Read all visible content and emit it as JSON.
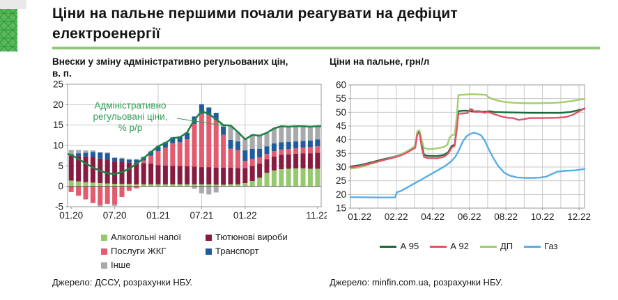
{
  "page": {
    "title_line1": "Ціни на пальне першими почали реагувати на дефіцит",
    "title_line2": "електроенергії"
  },
  "colors": {
    "title_rule": "#8cc878",
    "logo_bg": "#5db75d",
    "logo_line": "#2f9e3f",
    "grid": "#c9c9c9",
    "frame": "#999999",
    "zero_line": "#5f5f5f",
    "axis_text": "#1a1a1a",
    "annotation_green": "#2f9e57"
  },
  "left_panel": {
    "title_line1": "Внески у зміну адміністративно регульованих цін,",
    "title_line2": "в. п.",
    "source": "Джерело: ДССУ, розрахунки НБУ."
  },
  "right_panel": {
    "title": "Ціни на пальне, грн/л",
    "source": "Джерело: minfin.com.ua, розрахунки НБУ."
  },
  "chart_data": [
    {
      "type": "bar",
      "title": "Внески у зміну адміністративно регульованих цін, в. п.",
      "ylim": [
        -5,
        25
      ],
      "yticks": [
        -5,
        0,
        5,
        10,
        15,
        20,
        25
      ],
      "months": [
        "01.20",
        "02.20",
        "03.20",
        "04.20",
        "05.20",
        "06.20",
        "07.20",
        "08.20",
        "09.20",
        "10.20",
        "11.20",
        "12.20",
        "01.21",
        "02.21",
        "03.21",
        "04.21",
        "05.21",
        "06.21",
        "07.21",
        "08.21",
        "09.21",
        "10.21",
        "11.21",
        "12.21",
        "01.22",
        "02.22",
        "03.22",
        "04.22",
        "05.22",
        "06.22",
        "07.22",
        "08.22",
        "09.22",
        "10.22",
        "11.22"
      ],
      "xticks": [
        {
          "label": "01.20",
          "i": 0
        },
        {
          "label": "07.20",
          "i": 6
        },
        {
          "label": "01.21",
          "i": 12
        },
        {
          "label": "07.21",
          "i": 18
        },
        {
          "label": "01.22",
          "i": 24
        },
        {
          "label": "11.22",
          "i": 34
        }
      ],
      "vgrid_indices": [
        12,
        18,
        24
      ],
      "series": [
        {
          "name": "Алкогольні напої",
          "color": "#96c86e",
          "values": [
            1.4,
            1.2,
            1.0,
            0.9,
            0.8,
            0.7,
            0.6,
            0.6,
            0.6,
            0.5,
            0.5,
            0.5,
            0.5,
            0.5,
            0.5,
            0.5,
            0.5,
            0.5,
            0.5,
            0.5,
            0.4,
            0.4,
            0.5,
            0.5,
            0.8,
            1.3,
            2.1,
            3.3,
            3.9,
            4.2,
            4.3,
            4.4,
            4.4,
            4.3,
            4.3
          ]
        },
        {
          "name": "Тютюнові вироби",
          "color": "#871c40",
          "values": [
            6.1,
            6.2,
            6.3,
            6.3,
            6.0,
            5.8,
            5.5,
            5.4,
            5.2,
            5.3,
            5.2,
            5.1,
            4.7,
            4.6,
            4.5,
            4.5,
            4.4,
            4.3,
            4.2,
            4.2,
            4.2,
            4.2,
            4.1,
            4.0,
            3.7,
            3.7,
            3.5,
            3.3,
            3.4,
            3.5,
            3.5,
            3.6,
            3.7,
            3.8,
            3.9
          ]
        },
        {
          "name": "Послуги ЖКГ",
          "color": "#e25b6e",
          "values": [
            -1.4,
            -2.3,
            -3.2,
            -4.1,
            -4.6,
            -4.3,
            -4.4,
            -2.6,
            -1.1,
            -0.5,
            0.6,
            1.9,
            3.4,
            4.4,
            5.6,
            5.8,
            6.6,
            10.5,
            13.0,
            12.8,
            11.7,
            8.0,
            4.6,
            4.4,
            1.7,
            1.7,
            1.5,
            1.3,
            1.3,
            1.3,
            1.3,
            1.3,
            1.4,
            1.5,
            1.6
          ]
        },
        {
          "name": "Транспорт",
          "color": "#1f5c9e",
          "values": [
            0.4,
            0.7,
            0.9,
            1.2,
            1.5,
            1.6,
            0.9,
            0.8,
            0.7,
            0.7,
            0.8,
            1.0,
            1.1,
            1.2,
            1.3,
            1.3,
            1.6,
            1.8,
            2.4,
            1.8,
            1.7,
            2.0,
            2.2,
            2.1,
            2.6,
            2.5,
            2.1,
            1.9,
            1.9,
            1.8,
            1.8,
            1.7,
            1.6,
            1.6,
            1.7
          ]
        },
        {
          "name": "Інше",
          "color": "#a7a9ac",
          "values": [
            1.0,
            0.8,
            0.6,
            0.4,
            -0.4,
            0.2,
            -0.4,
            0.2,
            0.2,
            0.2,
            0.2,
            0.2,
            0.2,
            0.2,
            0.2,
            0.2,
            0.1,
            -0.6,
            -1.7,
            -2.0,
            -1.5,
            0.6,
            3.4,
            2.3,
            2.7,
            3.4,
            3.2,
            3.3,
            3.7,
            3.9,
            3.7,
            3.7,
            3.6,
            3.4,
            3.2
          ]
        }
      ],
      "line": {
        "name": "Адміністративно регульовані ціни, % р/р",
        "annotation_lines": [
          "Адміністративно",
          "регульовані ціни,",
          "% р/р"
        ],
        "color": "#1e8246",
        "values": [
          7.7,
          6.7,
          5.6,
          4.6,
          3.8,
          3.2,
          3.0,
          3.5,
          4.3,
          5.5,
          6.9,
          8.4,
          9.8,
          10.6,
          11.8,
          12.0,
          13.2,
          16.3,
          18.4,
          17.7,
          16.4,
          15.0,
          14.9,
          13.3,
          11.5,
          12.6,
          12.4,
          13.1,
          14.2,
          14.7,
          14.6,
          14.7,
          14.7,
          14.6,
          14.7
        ]
      }
    },
    {
      "type": "line",
      "title": "Ціни на пальне, грн/л",
      "ylim": [
        15,
        60
      ],
      "yticks": [
        15,
        20,
        25,
        30,
        35,
        40,
        45,
        50,
        55,
        60
      ],
      "xlim": [
        -0.25,
        6.15
      ],
      "xticks": [
        {
          "label": "01.22",
          "t": 0
        },
        {
          "label": "02.22",
          "t": 1
        },
        {
          "label": "04.22",
          "t": 2
        },
        {
          "label": "06.22",
          "t": 3
        },
        {
          "label": "08.22",
          "t": 4
        },
        {
          "label": "10.22",
          "t": 5
        },
        {
          "label": "12.22",
          "t": 6
        }
      ],
      "series": [
        {
          "name": "А 95",
          "color": "#17693a",
          "points": [
            [
              -0.25,
              30.2
            ],
            [
              0,
              30.7
            ],
            [
              0.2,
              31.3
            ],
            [
              0.4,
              32.0
            ],
            [
              0.6,
              32.7
            ],
            [
              0.8,
              33.3
            ],
            [
              1.0,
              34.0
            ],
            [
              1.15,
              34.7
            ],
            [
              1.3,
              35.6
            ],
            [
              1.45,
              36.8
            ],
            [
              1.52,
              37.4
            ],
            [
              1.58,
              42.6
            ],
            [
              1.64,
              42.8
            ],
            [
              1.7,
              38.0
            ],
            [
              1.76,
              34.5
            ],
            [
              1.85,
              34.1
            ],
            [
              2.1,
              34.0
            ],
            [
              2.3,
              34.4
            ],
            [
              2.42,
              35.4
            ],
            [
              2.52,
              37.7
            ],
            [
              2.6,
              38.2
            ],
            [
              2.66,
              45.0
            ],
            [
              2.7,
              50.4
            ],
            [
              2.85,
              50.6
            ],
            [
              3.0,
              50.5
            ],
            [
              3.1,
              50.3
            ],
            [
              3.25,
              50.4
            ],
            [
              3.4,
              50.2
            ],
            [
              3.55,
              50.4
            ],
            [
              3.7,
              50.1
            ],
            [
              3.95,
              50.0
            ],
            [
              4.3,
              49.9
            ],
            [
              4.7,
              49.8
            ],
            [
              5.1,
              49.8
            ],
            [
              5.5,
              49.8
            ],
            [
              5.75,
              50.1
            ],
            [
              6.0,
              50.8
            ],
            [
              6.15,
              51.3
            ]
          ]
        },
        {
          "name": "А 92",
          "color": "#e0546a",
          "points": [
            [
              -0.25,
              29.9
            ],
            [
              0,
              30.4
            ],
            [
              0.2,
              31.0
            ],
            [
              0.4,
              31.7
            ],
            [
              0.6,
              32.4
            ],
            [
              0.8,
              33.0
            ],
            [
              1.0,
              33.7
            ],
            [
              1.15,
              34.4
            ],
            [
              1.3,
              35.3
            ],
            [
              1.45,
              36.5
            ],
            [
              1.52,
              37.0
            ],
            [
              1.58,
              42.1
            ],
            [
              1.64,
              42.3
            ],
            [
              1.7,
              37.0
            ],
            [
              1.76,
              33.7
            ],
            [
              1.85,
              33.3
            ],
            [
              2.1,
              33.2
            ],
            [
              2.3,
              33.7
            ],
            [
              2.42,
              34.9
            ],
            [
              2.52,
              37.1
            ],
            [
              2.6,
              37.8
            ],
            [
              2.66,
              44.0
            ],
            [
              2.7,
              49.4
            ],
            [
              2.85,
              49.6
            ],
            [
              2.95,
              49.7
            ],
            [
              3.02,
              51.2
            ],
            [
              3.08,
              51.0
            ],
            [
              3.15,
              50.1
            ],
            [
              3.3,
              50.2
            ],
            [
              3.42,
              49.8
            ],
            [
              3.5,
              50.1
            ],
            [
              3.6,
              49.7
            ],
            [
              3.75,
              49.0
            ],
            [
              3.9,
              48.4
            ],
            [
              4.05,
              48.0
            ],
            [
              4.2,
              47.9
            ],
            [
              4.35,
              47.2
            ],
            [
              4.5,
              47.5
            ],
            [
              4.65,
              47.9
            ],
            [
              5.0,
              47.9
            ],
            [
              5.4,
              48.0
            ],
            [
              5.65,
              48.3
            ],
            [
              5.85,
              49.2
            ],
            [
              6.05,
              50.7
            ],
            [
              6.15,
              51.5
            ]
          ]
        },
        {
          "name": "ДП",
          "color": "#a2cd6c",
          "points": [
            [
              -0.25,
              29.4
            ],
            [
              0,
              29.9
            ],
            [
              0.2,
              30.7
            ],
            [
              0.4,
              31.5
            ],
            [
              0.6,
              32.3
            ],
            [
              0.8,
              33.1
            ],
            [
              1.0,
              33.9
            ],
            [
              1.15,
              34.8
            ],
            [
              1.3,
              35.8
            ],
            [
              1.45,
              37.1
            ],
            [
              1.52,
              37.8
            ],
            [
              1.58,
              43.1
            ],
            [
              1.64,
              43.4
            ],
            [
              1.7,
              39.8
            ],
            [
              1.76,
              37.0
            ],
            [
              1.85,
              36.6
            ],
            [
              2.0,
              36.6
            ],
            [
              2.15,
              36.9
            ],
            [
              2.3,
              37.3
            ],
            [
              2.4,
              38.2
            ],
            [
              2.46,
              40.7
            ],
            [
              2.52,
              41.6
            ],
            [
              2.6,
              41.9
            ],
            [
              2.66,
              49.0
            ],
            [
              2.7,
              56.3
            ],
            [
              2.9,
              56.5
            ],
            [
              3.1,
              56.6
            ],
            [
              3.3,
              56.5
            ],
            [
              3.45,
              56.4
            ],
            [
              3.52,
              55.6
            ],
            [
              3.62,
              54.9
            ],
            [
              3.8,
              54.2
            ],
            [
              4.0,
              53.7
            ],
            [
              4.2,
              53.5
            ],
            [
              4.5,
              53.3
            ],
            [
              4.85,
              53.3
            ],
            [
              5.2,
              53.4
            ],
            [
              5.5,
              53.6
            ],
            [
              5.8,
              54.1
            ],
            [
              6.05,
              54.7
            ],
            [
              6.15,
              54.9
            ]
          ]
        },
        {
          "name": "Газ",
          "color": "#56ade4",
          "points": [
            [
              -0.25,
              19.0
            ],
            [
              0.5,
              18.9
            ],
            [
              0.97,
              18.9
            ],
            [
              1.02,
              20.8
            ],
            [
              1.15,
              21.4
            ],
            [
              1.35,
              22.9
            ],
            [
              1.55,
              24.4
            ],
            [
              1.75,
              25.9
            ],
            [
              1.95,
              27.4
            ],
            [
              2.15,
              28.9
            ],
            [
              2.35,
              30.5
            ],
            [
              2.5,
              32.0
            ],
            [
              2.62,
              33.8
            ],
            [
              2.72,
              36.3
            ],
            [
              2.82,
              39.3
            ],
            [
              2.92,
              41.2
            ],
            [
              3.02,
              42.1
            ],
            [
              3.12,
              42.5
            ],
            [
              3.22,
              42.2
            ],
            [
              3.32,
              41.6
            ],
            [
              3.42,
              39.7
            ],
            [
              3.52,
              36.8
            ],
            [
              3.65,
              33.4
            ],
            [
              3.8,
              30.2
            ],
            [
              3.95,
              28.0
            ],
            [
              4.1,
              26.9
            ],
            [
              4.3,
              26.2
            ],
            [
              4.6,
              26.0
            ],
            [
              4.9,
              26.1
            ],
            [
              5.1,
              26.5
            ],
            [
              5.25,
              27.4
            ],
            [
              5.4,
              28.3
            ],
            [
              5.6,
              28.6
            ],
            [
              5.9,
              28.8
            ],
            [
              6.15,
              29.3
            ]
          ]
        }
      ]
    }
  ]
}
